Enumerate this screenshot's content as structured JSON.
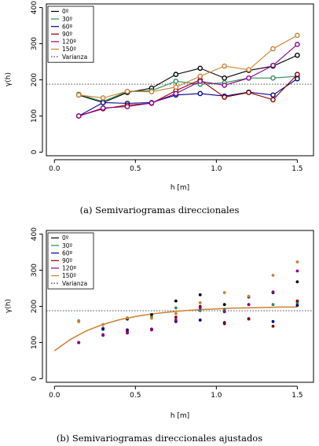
{
  "series_colors": [
    "#000000",
    "#2e8b57",
    "#00008b",
    "#8b0000",
    "#8b008b",
    "#cd7f32"
  ],
  "chart_data": [
    {
      "type": "line",
      "title": "",
      "caption": "(a) Semivariogramas direccionales",
      "xlabel": "h [m]",
      "ylabel": "γ(h)",
      "xlim": [
        -0.05,
        1.6
      ],
      "ylim": [
        -10,
        410
      ],
      "xticks": [
        "0.0",
        "0.5",
        "1.0",
        "1.5"
      ],
      "yticks": [
        "0",
        "100",
        "200",
        "300",
        "400"
      ],
      "x": [
        0.15,
        0.3,
        0.45,
        0.6,
        0.75,
        0.9,
        1.05,
        1.2,
        1.35,
        1.5
      ],
      "series": [
        {
          "name": "0º",
          "values": [
            158,
            137,
            165,
            177,
            215,
            232,
            205,
            226,
            238,
            268
          ]
        },
        {
          "name": "30º",
          "values": [
            160,
            140,
            168,
            170,
            196,
            188,
            192,
            205,
            205,
            210
          ]
        },
        {
          "name": "60º",
          "values": [
            100,
            137,
            135,
            137,
            158,
            162,
            155,
            166,
            158,
            203
          ]
        },
        {
          "name": "90º",
          "values": [
            100,
            120,
            130,
            135,
            170,
            200,
            152,
            165,
            145,
            215
          ]
        },
        {
          "name": "120º",
          "values": [
            100,
            122,
            126,
            136,
            162,
            196,
            185,
            205,
            240,
            298
          ]
        },
        {
          "name": "150º",
          "values": [
            158,
            150,
            168,
            167,
            180,
            210,
            238,
            228,
            286,
            323
          ]
        }
      ],
      "reference_line": {
        "name": "Varianza",
        "value": 188
      },
      "legend": "top-left"
    },
    {
      "type": "scatter",
      "title": "",
      "caption": "(b) Semivariogramas direccionales ajustados",
      "xlabel": "h [m]",
      "ylabel": "γ(h)",
      "xlim": [
        -0.05,
        1.6
      ],
      "ylim": [
        -10,
        410
      ],
      "xticks": [
        "0.0",
        "0.5",
        "1.0",
        "1.5"
      ],
      "yticks": [
        "0",
        "100",
        "200",
        "300",
        "400"
      ],
      "x": [
        0.15,
        0.3,
        0.45,
        0.6,
        0.75,
        0.9,
        1.05,
        1.2,
        1.35,
        1.5
      ],
      "series": [
        {
          "name": "0º",
          "values": [
            158,
            137,
            165,
            177,
            215,
            232,
            205,
            226,
            238,
            268
          ]
        },
        {
          "name": "30º",
          "values": [
            160,
            140,
            168,
            170,
            196,
            188,
            192,
            205,
            205,
            210
          ]
        },
        {
          "name": "60º",
          "values": [
            100,
            137,
            135,
            137,
            158,
            162,
            155,
            166,
            158,
            203
          ]
        },
        {
          "name": "90º",
          "values": [
            100,
            120,
            130,
            135,
            170,
            200,
            152,
            165,
            145,
            215
          ]
        },
        {
          "name": "120º",
          "values": [
            100,
            122,
            126,
            136,
            162,
            196,
            185,
            205,
            240,
            298
          ]
        },
        {
          "name": "150º",
          "values": [
            158,
            150,
            168,
            167,
            180,
            210,
            238,
            228,
            286,
            323
          ]
        }
      ],
      "reference_line": {
        "name": "Varianza",
        "value": 188
      },
      "fitted_curve": {
        "x": [
          0.0,
          0.1,
          0.2,
          0.3,
          0.4,
          0.5,
          0.6,
          0.7,
          0.8,
          0.9,
          1.0,
          1.1,
          1.2,
          1.3,
          1.4,
          1.5
        ],
        "values": [
          77,
          109,
          133,
          150,
          163,
          172,
          179,
          184,
          188,
          191,
          193,
          195,
          196,
          197,
          198,
          198
        ]
      },
      "legend": "top-left"
    }
  ]
}
